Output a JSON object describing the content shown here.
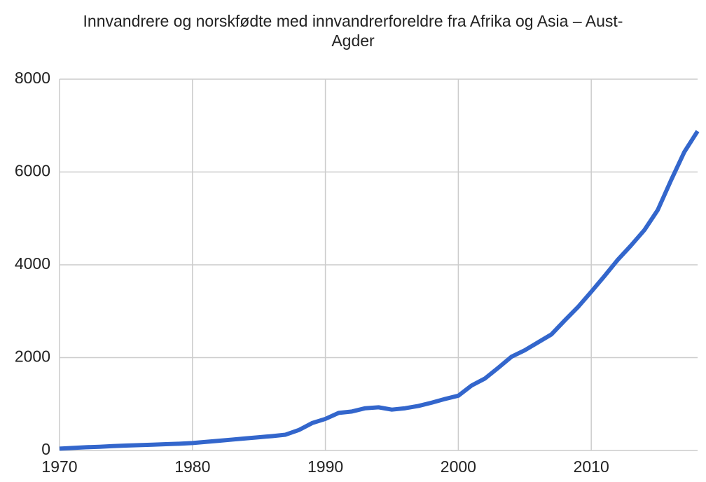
{
  "chart_data": {
    "type": "line",
    "title": "Innvandrere og norskfødte med innvandrerforeldre fra Afrika og Asia – Aust-Agder",
    "x": [
      1970,
      1971,
      1972,
      1973,
      1974,
      1975,
      1976,
      1977,
      1978,
      1979,
      1980,
      1981,
      1982,
      1983,
      1984,
      1985,
      1986,
      1987,
      1988,
      1989,
      1990,
      1991,
      1992,
      1993,
      1994,
      1995,
      1996,
      1997,
      1998,
      1999,
      2000,
      2001,
      2002,
      2003,
      2004,
      2005,
      2006,
      2007,
      2008,
      2009,
      2010,
      2011,
      2012,
      2013,
      2014,
      2015,
      2016,
      2017,
      2018
    ],
    "series": [
      {
        "color": "#3366cc",
        "values": [
          40,
          55,
          70,
          80,
          95,
          105,
          115,
          125,
          135,
          145,
          160,
          185,
          210,
          235,
          260,
          285,
          310,
          340,
          440,
          590,
          680,
          810,
          840,
          910,
          930,
          880,
          910,
          960,
          1030,
          1110,
          1180,
          1400,
          1550,
          1780,
          2020,
          2160,
          2330,
          2500,
          2800,
          3090,
          3420,
          3760,
          4110,
          4420,
          4750,
          5180,
          5820,
          6430,
          6880
        ]
      }
    ],
    "xlim": [
      1970,
      2018
    ],
    "xticks": [
      1970,
      1980,
      1990,
      2000,
      2010
    ],
    "ylim": [
      0,
      8000
    ],
    "yticks": [
      0,
      2000,
      4000,
      6000,
      8000
    ],
    "grid": true
  }
}
